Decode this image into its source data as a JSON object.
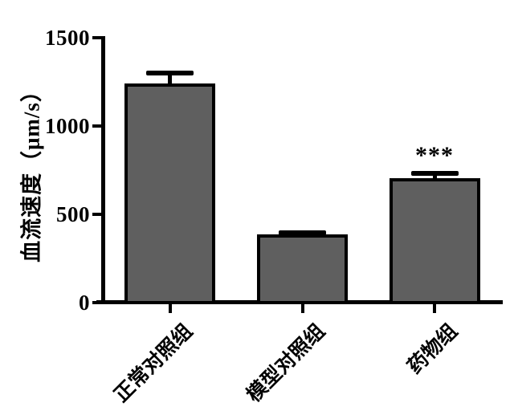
{
  "chart_data": {
    "type": "bar",
    "title": "",
    "ylabel": "血流速度（μm/s）",
    "xlabel": "",
    "categories": [
      "正常对照组",
      "模型对照组",
      "药物组"
    ],
    "values": [
      1240,
      385,
      705
    ],
    "errors_upper": [
      75,
      25,
      40
    ],
    "ylim": [
      0,
      1500
    ],
    "yticks": [
      0,
      500,
      1000,
      1500
    ],
    "ytick_labels": [
      "0",
      "500",
      "1000",
      "1500"
    ],
    "grid": false,
    "legend": false,
    "bar_fill_color": "#5f5f5f",
    "bar_border_color": "#000000",
    "background_color": "#ffffff",
    "annotations": [
      {
        "category": "药物组",
        "text": "***"
      }
    ]
  }
}
